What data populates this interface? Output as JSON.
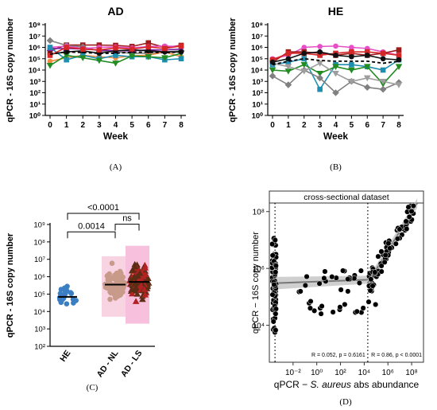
{
  "chart_data": [
    {
      "type": "line",
      "panel": "(A)",
      "title": "AD",
      "xlabel": "Week",
      "ylabel": "qPCR - 16S copy number",
      "ylog": true,
      "ylim": [
        1,
        100000000
      ],
      "y_ticks": [
        "10⁰",
        "10¹",
        "10²",
        "10³",
        "10⁴",
        "10⁵",
        "10⁶",
        "10⁷",
        "10⁸"
      ],
      "x": [
        0,
        1,
        2,
        3,
        4,
        5,
        6,
        7,
        8
      ],
      "x_ticks": [
        "0",
        "1",
        "2",
        "3",
        "4",
        "5",
        "6",
        "7",
        "8"
      ],
      "mean_style": "dashed-black",
      "series": [
        {
          "color": "#9e1b1b",
          "marker": "square",
          "values": [
            500000,
            1600000,
            1600000,
            1600000,
            1500000,
            1200000,
            2500000,
            1000000,
            1500000
          ]
        },
        {
          "color": "#808080",
          "marker": "diamond",
          "values": [
            4000000,
            1500000,
            1100000,
            500000,
            400000,
            300000,
            300000,
            400000,
            500000
          ]
        },
        {
          "color": "#e64fc8",
          "marker": "circle",
          "values": [
            1000000,
            1300000,
            800000,
            1000000,
            1100000,
            900000,
            1200000,
            1300000,
            1200000
          ]
        },
        {
          "color": "#7b1fa2",
          "marker": "triangle",
          "values": [
            800000,
            800000,
            700000,
            600000,
            500000,
            500000,
            600000,
            600000,
            700000
          ]
        },
        {
          "color": "#f5893d",
          "marker": "circle",
          "values": [
            60000,
            120000,
            200000,
            150000,
            120000,
            180000,
            200000,
            400000,
            150000
          ]
        },
        {
          "color": "#1e8fb0",
          "marker": "square",
          "values": [
            1000000,
            80000,
            200000,
            100000,
            200000,
            150000,
            150000,
            80000,
            100000
          ]
        },
        {
          "color": "#228b22",
          "marker": "triangle-down",
          "values": [
            25000,
            200000,
            120000,
            70000,
            40000,
            180000,
            150000,
            120000,
            300000
          ]
        },
        {
          "color": "#111111",
          "marker": "circle",
          "values": [
            250000,
            400000,
            500000,
            300000,
            500000,
            600000,
            500000,
            400000,
            400000
          ]
        },
        {
          "color": "#d62728",
          "marker": "square",
          "values": [
            200000,
            1000000,
            700000,
            600000,
            900000,
            700000,
            1100000,
            800000,
            1300000
          ]
        }
      ],
      "mean": [
        250000,
        400000,
        350000,
        300000,
        300000,
        380000,
        380000,
        330000,
        400000
      ]
    },
    {
      "type": "line",
      "panel": "(B)",
      "title": "HE",
      "xlabel": "Week",
      "ylabel": "qPCR - 16S copy number",
      "ylog": true,
      "ylim": [
        1,
        100000000
      ],
      "y_ticks": [
        "10⁰",
        "10¹",
        "10²",
        "10³",
        "10⁴",
        "10⁵",
        "10⁶",
        "10⁷",
        "10⁸"
      ],
      "x": [
        0,
        1,
        2,
        3,
        4,
        5,
        6,
        7,
        8
      ],
      "x_ticks": [
        "0",
        "1",
        "2",
        "3",
        "4",
        "5",
        "6",
        "7",
        "8"
      ],
      "mean_style": "dashed-black",
      "series": [
        {
          "color": "#e64fc8",
          "marker": "circle",
          "values": [
            100000,
            200000,
            1000000,
            1200000,
            1300000,
            1000000,
            800000,
            400000,
            200000
          ]
        },
        {
          "color": "#9e1b1b",
          "marker": "square",
          "values": [
            50000,
            400000,
            400000,
            300000,
            200000,
            300000,
            200000,
            300000,
            600000
          ]
        },
        {
          "color": "#1e8fb0",
          "marker": "square",
          "values": [
            30000,
            50000,
            100000,
            200,
            30000,
            30000,
            20000,
            10000,
            80000
          ]
        },
        {
          "color": "#228b22",
          "marker": "triangle-down",
          "values": [
            10000,
            8000,
            30000,
            5000,
            20000,
            10000,
            20000,
            600,
            20000
          ]
        },
        {
          "color": "#808080",
          "marker": "diamond",
          "values": [
            3000,
            500,
            10000,
            2000,
            100,
            1000,
            300,
            200,
            800
          ]
        },
        {
          "color": "#9e9e9e",
          "marker": "triangle-down",
          "values": [
            40000,
            20000,
            8000,
            40000,
            5000,
            1000,
            2000,
            1000,
            500
          ]
        },
        {
          "color": "#d62728",
          "marker": "square",
          "values": [
            80000,
            300000,
            300000,
            200000,
            300000,
            400000,
            400000,
            300000,
            200000
          ]
        },
        {
          "color": "#111111",
          "marker": "circle",
          "values": [
            50000,
            100000,
            300000,
            400000,
            200000,
            150000,
            200000,
            100000,
            80000
          ]
        }
      ],
      "mean": [
        30000,
        60000,
        100000,
        70000,
        60000,
        60000,
        60000,
        40000,
        60000
      ]
    },
    {
      "type": "scatter",
      "panel": "(C)",
      "ylabel": "qPCR - 16S copy number",
      "ylog": true,
      "ylim": [
        100,
        1000000000
      ],
      "y_ticks": [
        "10²",
        "10³",
        "10⁴",
        "10⁵",
        "10⁶",
        "10⁷",
        "10⁸",
        "10⁹"
      ],
      "categories": [
        "HE",
        "AD - NL",
        "AD - LS"
      ],
      "medians": [
        70000,
        350000,
        500000
      ],
      "comparisons": [
        {
          "label": "0.0014",
          "from": "HE",
          "to": "AD - NL"
        },
        {
          "label": "ns",
          "from": "AD - NL",
          "to": "AD - LS"
        },
        {
          "label": "<0.0001",
          "from": "HE",
          "to": "AD - LS"
        }
      ]
    },
    {
      "type": "scatter",
      "panel": "(D)",
      "title": "cross-sectional dataset",
      "ylabel": "qPCR − 16S copy number",
      "xlabel_pre": "qPCR − ",
      "xlabel_italic": "S. aureus",
      "xlabel_post": " abs abundance",
      "xlog": true,
      "ylog": true,
      "xlim": [
        0.0001,
        1000000000
      ],
      "ylim": [
        500,
        200000000
      ],
      "x_ticks": [
        "10⁻²",
        "10⁰",
        "10²",
        "10⁴",
        "10⁶",
        "10⁸"
      ],
      "y_ticks": [
        "10⁴",
        "10⁶",
        "10⁸"
      ],
      "vlines": [
        0.0003,
        20000
      ],
      "annotation_left": "R = 0.052, p = 0.6161",
      "annotation_right": "R = 0.86, p < 0.0001"
    }
  ]
}
